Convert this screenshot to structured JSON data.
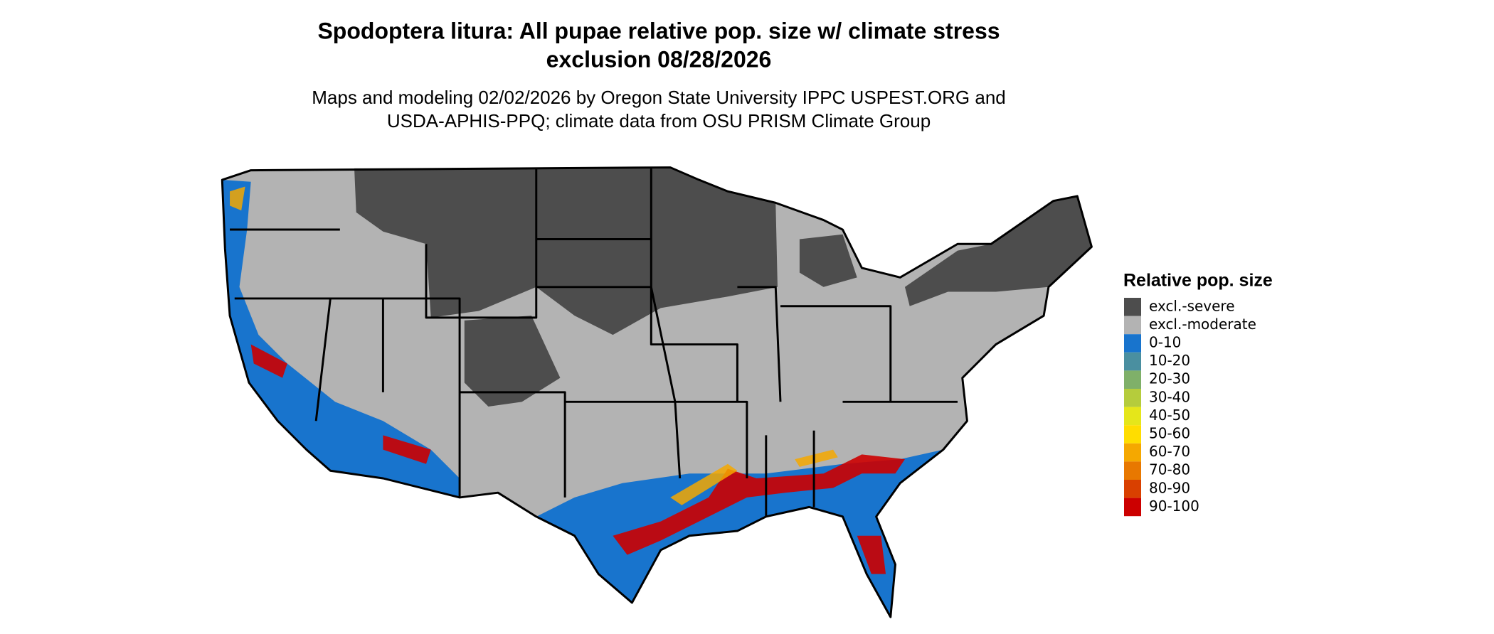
{
  "title": [
    "Spodoptera litura: All pupae relative pop. size w/ climate stress",
    "exclusion 08/28/2026"
  ],
  "subtitle": [
    "Maps and modeling 02/02/2026 by Oregon State University IPPC USPEST.ORG and",
    "USDA-APHIS-PPQ; climate data from OSU PRISM Climate Group"
  ],
  "legend": {
    "title": "Relative pop. size",
    "entries": [
      {
        "label": "excl.-severe",
        "color": "#4d4d4d"
      },
      {
        "label": "excl.-moderate",
        "color": "#b3b3b3"
      },
      {
        "label": "0-10",
        "color": "#1874cd"
      },
      {
        "label": "10-20",
        "color": "#4a8fa0"
      },
      {
        "label": "20-30",
        "color": "#7fb069"
      },
      {
        "label": "30-40",
        "color": "#b5cc3c"
      },
      {
        "label": "40-50",
        "color": "#e5e61a"
      },
      {
        "label": "50-60",
        "color": "#ffdd00"
      },
      {
        "label": "60-70",
        "color": "#f5a800"
      },
      {
        "label": "70-80",
        "color": "#e87800"
      },
      {
        "label": "80-90",
        "color": "#d94000"
      },
      {
        "label": "90-100",
        "color": "#cc0000"
      }
    ]
  }
}
